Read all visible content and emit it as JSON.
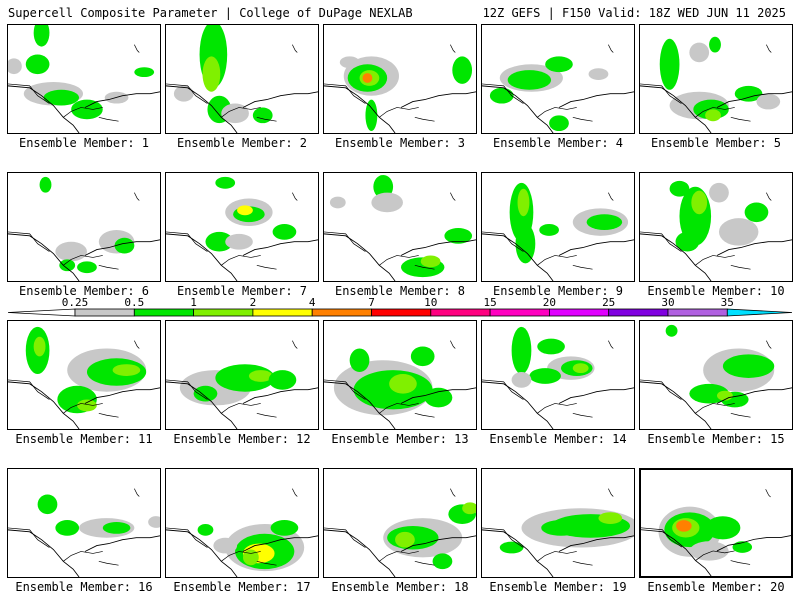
{
  "header": {
    "left": "Supercell Composite Parameter | College of DuPage NEXLAB",
    "right": "12Z GEFS | F150 Valid: 18Z WED JUN 11 2025"
  },
  "legend": {
    "ticks": [
      "0.25",
      "0.5",
      "1",
      "2",
      "4",
      "7",
      "10",
      "15",
      "20",
      "25",
      "30",
      "35"
    ],
    "colors": [
      "#c8c8c8",
      "#00e600",
      "#80f000",
      "#ffff00",
      "#ff8000",
      "#ff0000",
      "#ff0080",
      "#ff00c0",
      "#e000ff",
      "#8000e0",
      "#b060e0",
      "#00e0ff"
    ]
  },
  "panels": [
    {
      "label": "Ensemble Member: 1"
    },
    {
      "label": "Ensemble Member: 2"
    },
    {
      "label": "Ensemble Member: 3"
    },
    {
      "label": "Ensemble Member: 4"
    },
    {
      "label": "Ensemble Member: 5"
    },
    {
      "label": "Ensemble Member: 6"
    },
    {
      "label": "Ensemble Member: 7"
    },
    {
      "label": "Ensemble Member: 8"
    },
    {
      "label": "Ensemble Member: 9"
    },
    {
      "label": "Ensemble Member: 10"
    },
    {
      "label": "Ensemble Member: 11"
    },
    {
      "label": "Ensemble Member: 12"
    },
    {
      "label": "Ensemble Member: 13"
    },
    {
      "label": "Ensemble Member: 14"
    },
    {
      "label": "Ensemble Member: 15"
    },
    {
      "label": "Ensemble Member: 16"
    },
    {
      "label": "Ensemble Member: 17"
    },
    {
      "label": "Ensemble Member: 18"
    },
    {
      "label": "Ensemble Member: 19"
    },
    {
      "label": "Ensemble Member: 20"
    }
  ]
}
